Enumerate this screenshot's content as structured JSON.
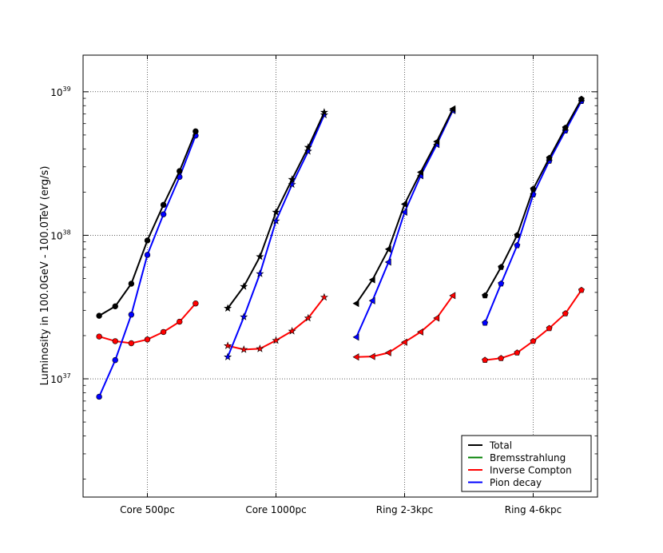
{
  "chart_data": {
    "type": "line",
    "ylabel": "Luminosity in 100.0GeV - 100.0TeV (erg/s)",
    "xlabel": "",
    "title": "",
    "yscale": "log",
    "ylim": [
      1.5e+36,
      1.8e+39
    ],
    "y_ticks": [
      {
        "value": 1e+37,
        "base": "10",
        "exp": "37"
      },
      {
        "value": 1e+38,
        "base": "10",
        "exp": "38"
      },
      {
        "value": 1e+39,
        "base": "10",
        "exp": "39"
      }
    ],
    "categories": [
      "Core 500pc",
      "Core 1000pc",
      "Ring 2-3kpc",
      "Ring 4-6kpc"
    ],
    "grid": true,
    "legend_position": "bottom-right",
    "series": [
      {
        "name": "Total",
        "color": "#000000"
      },
      {
        "name": "Bremsstrahlung",
        "color": "#008000"
      },
      {
        "name": "Inverse Compton",
        "color": "#ff0000"
      },
      {
        "name": "Pion decay",
        "color": "#0000ff"
      }
    ],
    "groups": [
      {
        "category": "Core 500pc",
        "marker": "circle",
        "Total": [
          2.75e+37,
          3.2e+37,
          4.6e+37,
          9.2e+37,
          1.63e+38,
          2.8e+38,
          5.3e+38
        ],
        "Inverse Compton": [
          1.97e+37,
          1.83e+37,
          1.77e+37,
          1.88e+37,
          2.12e+37,
          2.5e+37,
          3.35e+37
        ],
        "Pion decay": [
          7.5e+36,
          1.35e+37,
          2.8e+37,
          7.3e+37,
          1.4e+38,
          2.55e+38,
          4.95e+38
        ]
      },
      {
        "category": "Core 1000pc",
        "marker": "star",
        "Total": [
          3.1e+37,
          4.4e+37,
          7.1e+37,
          1.45e+38,
          2.45e+38,
          4.1e+38,
          7.2e+38
        ],
        "Inverse Compton": [
          1.7e+37,
          1.6e+37,
          1.62e+37,
          1.85e+37,
          2.15e+37,
          2.65e+37,
          3.7e+37
        ],
        "Pion decay": [
          1.42e+37,
          2.7e+37,
          5.4e+37,
          1.26e+38,
          2.26e+38,
          3.85e+38,
          6.9e+38
        ]
      },
      {
        "category": "Ring 2-3kpc",
        "marker": "triangle-left",
        "Total": [
          3.35e+37,
          4.9e+37,
          8e+37,
          1.65e+38,
          2.75e+38,
          4.5e+38,
          7.6e+38
        ],
        "Inverse Compton": [
          1.42e+37,
          1.43e+37,
          1.52e+37,
          1.8e+37,
          2.12e+37,
          2.65e+37,
          3.8e+37
        ],
        "Pion decay": [
          1.95e+37,
          3.5e+37,
          6.5e+37,
          1.45e+38,
          2.6e+38,
          4.3e+38,
          7.4e+38
        ]
      },
      {
        "category": "Ring 4-6kpc",
        "marker": "pentagon",
        "Total": [
          3.8e+37,
          6e+37,
          1e+38,
          2.1e+38,
          3.45e+38,
          5.6e+38,
          8.9e+38
        ],
        "Inverse Compton": [
          1.35e+37,
          1.39e+37,
          1.52e+37,
          1.83e+37,
          2.25e+37,
          2.85e+37,
          4.15e+37
        ],
        "Pion decay": [
          2.45e+37,
          4.6e+37,
          8.5e+37,
          1.92e+38,
          3.3e+38,
          5.35e+38,
          8.6e+38
        ]
      }
    ]
  }
}
